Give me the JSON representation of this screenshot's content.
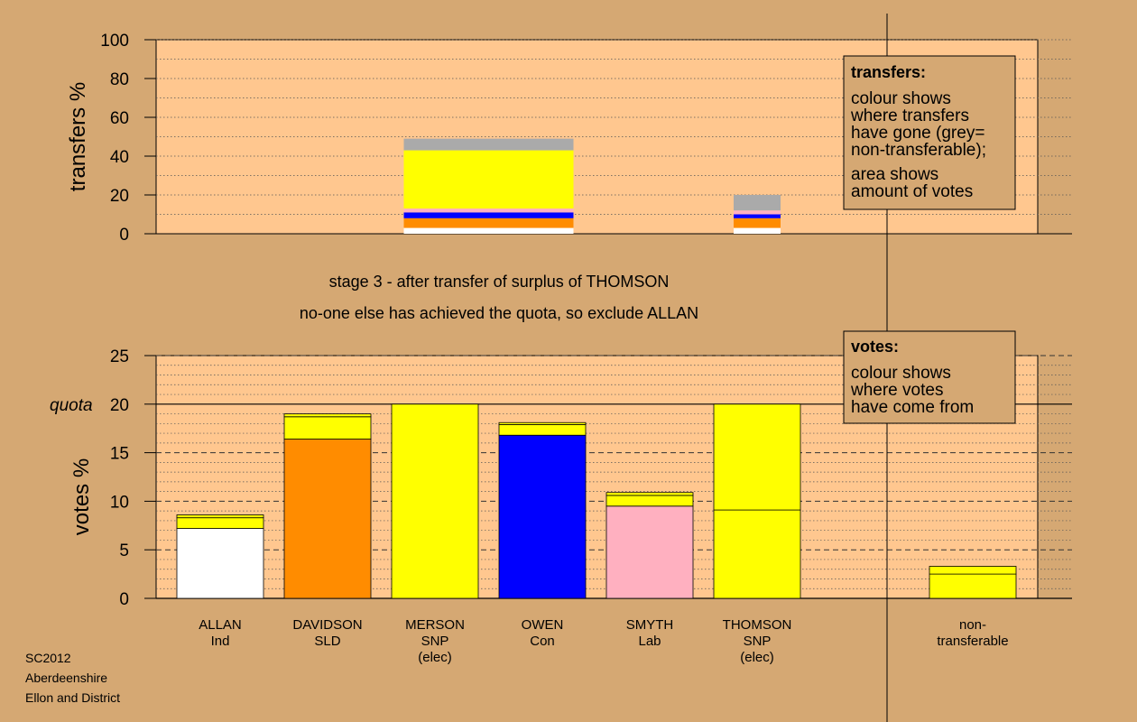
{
  "footer": {
    "lines": [
      "SC2012",
      "Aberdeenshire",
      "Ellon and District"
    ]
  },
  "stage": {
    "line1": "stage 3 - after transfer of surplus of THOMSON",
    "line2": "no-one else has achieved the quota, so exclude ALLAN"
  },
  "transfers_legend": {
    "title": "transfers:",
    "lines": [
      "colour shows",
      "where transfers",
      "have gone (grey=",
      "non-transferable);",
      "area shows",
      "amount of votes"
    ]
  },
  "votes_legend": {
    "title": "votes:",
    "lines": [
      "colour shows",
      "where votes",
      "have come from"
    ]
  },
  "candidates": [
    {
      "name": "ALLAN",
      "party": "Ind",
      "extra": ""
    },
    {
      "name": "DAVIDSON",
      "party": "SLD",
      "extra": ""
    },
    {
      "name": "MERSON",
      "party": "SNP",
      "extra": "(elec)"
    },
    {
      "name": "OWEN",
      "party": "Con",
      "extra": ""
    },
    {
      "name": "SMYTH",
      "party": "Lab",
      "extra": ""
    },
    {
      "name": "THOMSON",
      "party": "SNP",
      "extra": "(elec)"
    },
    {
      "name": "non-",
      "party": "transferable",
      "extra": ""
    }
  ],
  "colors": {
    "background": "#d5a873",
    "plot_bg": "#ffc78f",
    "ind": "#ffffff",
    "sld": "#ff8c00",
    "snp": "#ffff00",
    "con": "#0000ff",
    "lab": "#ffb0c0",
    "nontransferable": "#aaaaaa"
  },
  "chart_data": [
    {
      "type": "bar",
      "ylabel": "transfers %",
      "ylim": [
        0,
        100
      ],
      "yticks": [
        0,
        20,
        40,
        60,
        80,
        100
      ],
      "bars": [
        {
          "position": "between MERSON and OWEN",
          "width_units": 1.5,
          "segments": [
            {
              "party": "ind",
              "value": 3
            },
            {
              "party": "sld",
              "value": 5
            },
            {
              "party": "con",
              "value": 3
            },
            {
              "party": "lab",
              "value": 2
            },
            {
              "party": "snp",
              "value": 30
            },
            {
              "party": "nontransferable",
              "value": 6
            }
          ]
        },
        {
          "position": "THOMSON",
          "width_units": 0.4,
          "segments": [
            {
              "party": "ind",
              "value": 3
            },
            {
              "party": "sld",
              "value": 5
            },
            {
              "party": "con",
              "value": 2
            },
            {
              "party": "lab",
              "value": 2
            },
            {
              "party": "nontransferable",
              "value": 8
            }
          ]
        }
      ]
    },
    {
      "type": "bar",
      "ylabel": "votes %",
      "ylim": [
        0,
        25
      ],
      "yticks": [
        0,
        5,
        10,
        15,
        20,
        25
      ],
      "quota": {
        "label": "quota",
        "value": 20
      },
      "categories": [
        "ALLAN Ind",
        "DAVIDSON SLD",
        "MERSON SNP (elec)",
        "OWEN Con",
        "SMYTH Lab",
        "THOMSON SNP (elec)",
        "non-transferable"
      ],
      "stacks": [
        [
          {
            "party": "ind",
            "value": 7.2
          },
          {
            "party": "snp",
            "value": 1.1
          },
          {
            "party": "snp",
            "value": 0.3
          }
        ],
        [
          {
            "party": "sld",
            "value": 16.4
          },
          {
            "party": "snp",
            "value": 2.3
          },
          {
            "party": "snp",
            "value": 0.3
          }
        ],
        [
          {
            "party": "snp",
            "value": 20.0
          }
        ],
        [
          {
            "party": "con",
            "value": 16.8
          },
          {
            "party": "snp",
            "value": 1.1
          },
          {
            "party": "snp",
            "value": 0.2
          }
        ],
        [
          {
            "party": "lab",
            "value": 9.5
          },
          {
            "party": "snp",
            "value": 1.1
          },
          {
            "party": "snp",
            "value": 0.3
          }
        ],
        [
          {
            "party": "snp",
            "value": 9.1
          },
          {
            "party": "snp",
            "value": 10.9
          }
        ],
        [
          {
            "party": "snp",
            "value": 2.5
          },
          {
            "party": "snp",
            "value": 0.8
          }
        ]
      ]
    }
  ]
}
